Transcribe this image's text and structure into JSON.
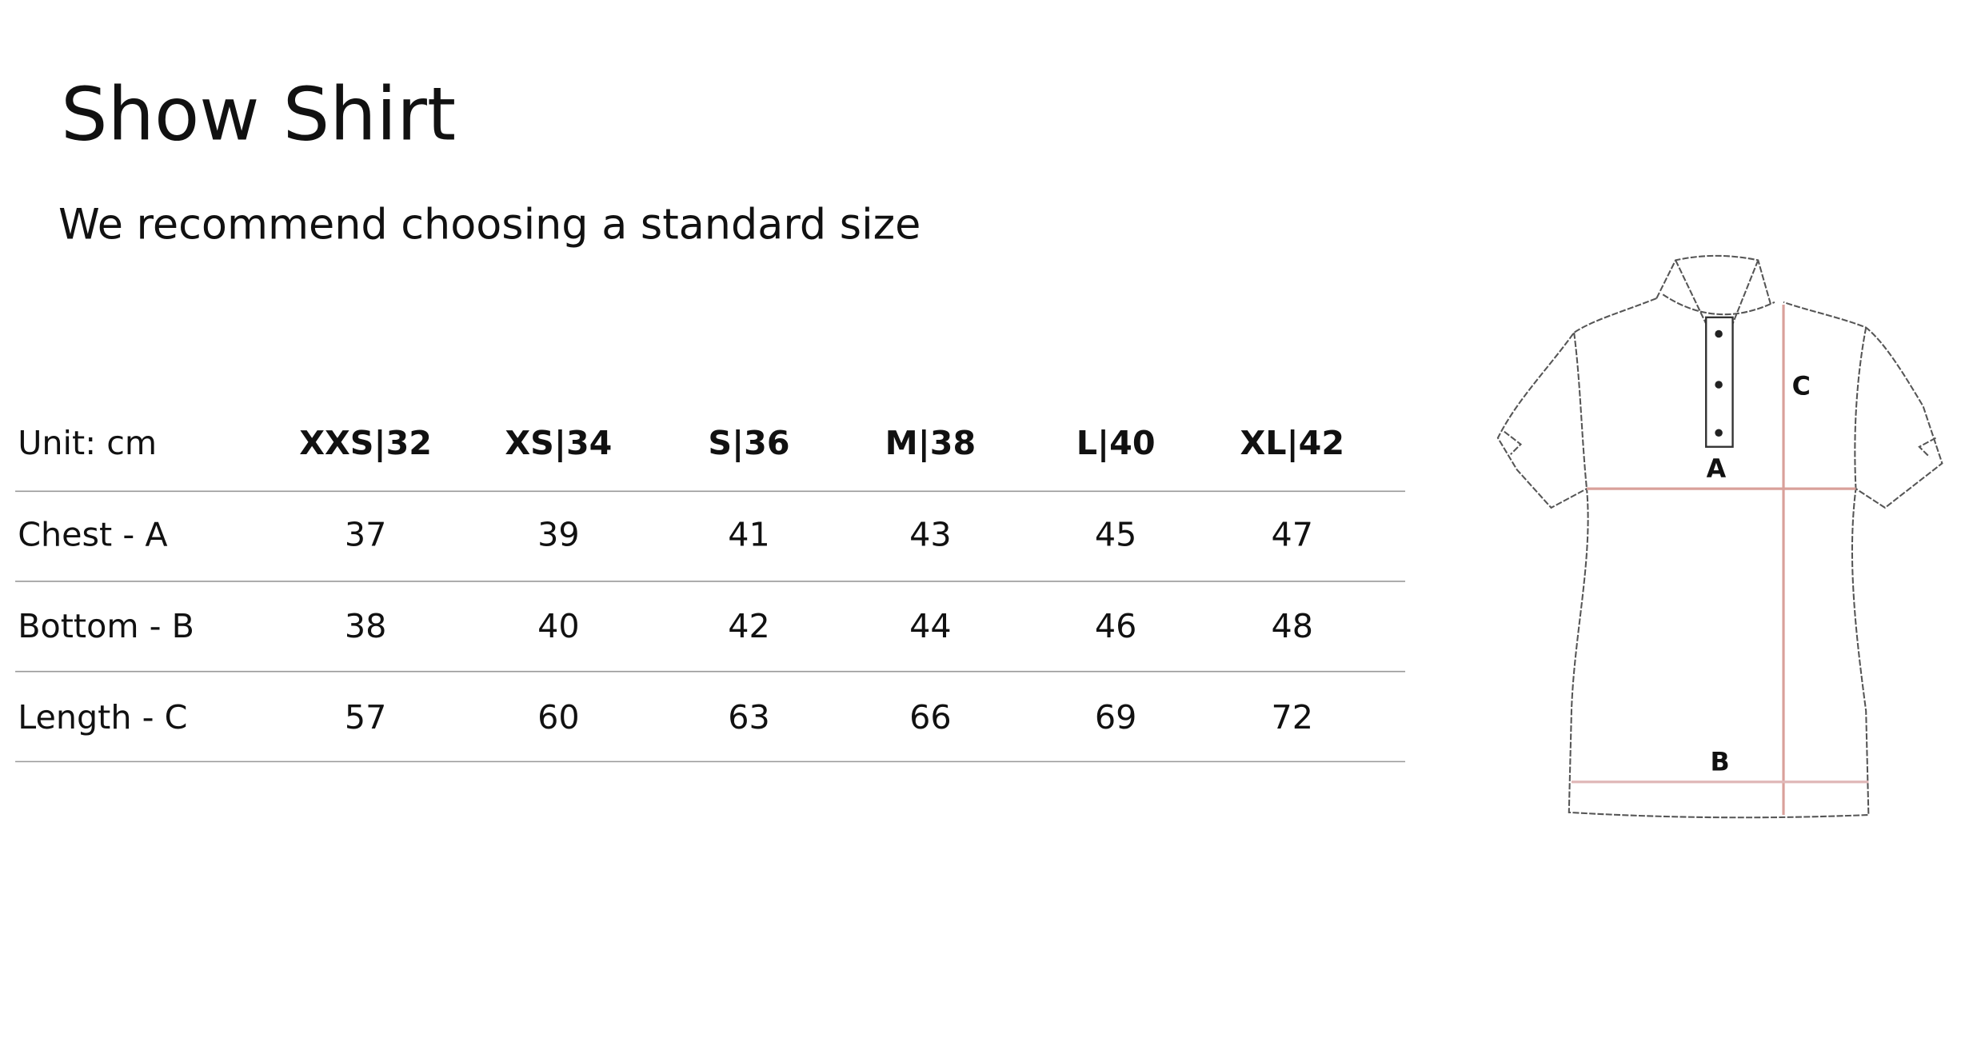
{
  "header": {
    "title": "Show Shirt",
    "subtitle": "We recommend choosing a standard size"
  },
  "table": {
    "columns": [
      "Unit: cm",
      "XXS|32",
      "XS|34",
      "S|36",
      "M|38",
      "L|40",
      "XL|42"
    ],
    "rows": [
      [
        "Chest - A",
        37,
        39,
        41,
        43,
        45,
        47
      ],
      [
        "Bottom - B",
        38,
        40,
        42,
        44,
        46,
        48
      ],
      [
        "Length - C",
        57,
        60,
        63,
        66,
        69,
        72
      ]
    ]
  },
  "diagram": {
    "labels": [
      "A",
      "B",
      "C"
    ]
  }
}
